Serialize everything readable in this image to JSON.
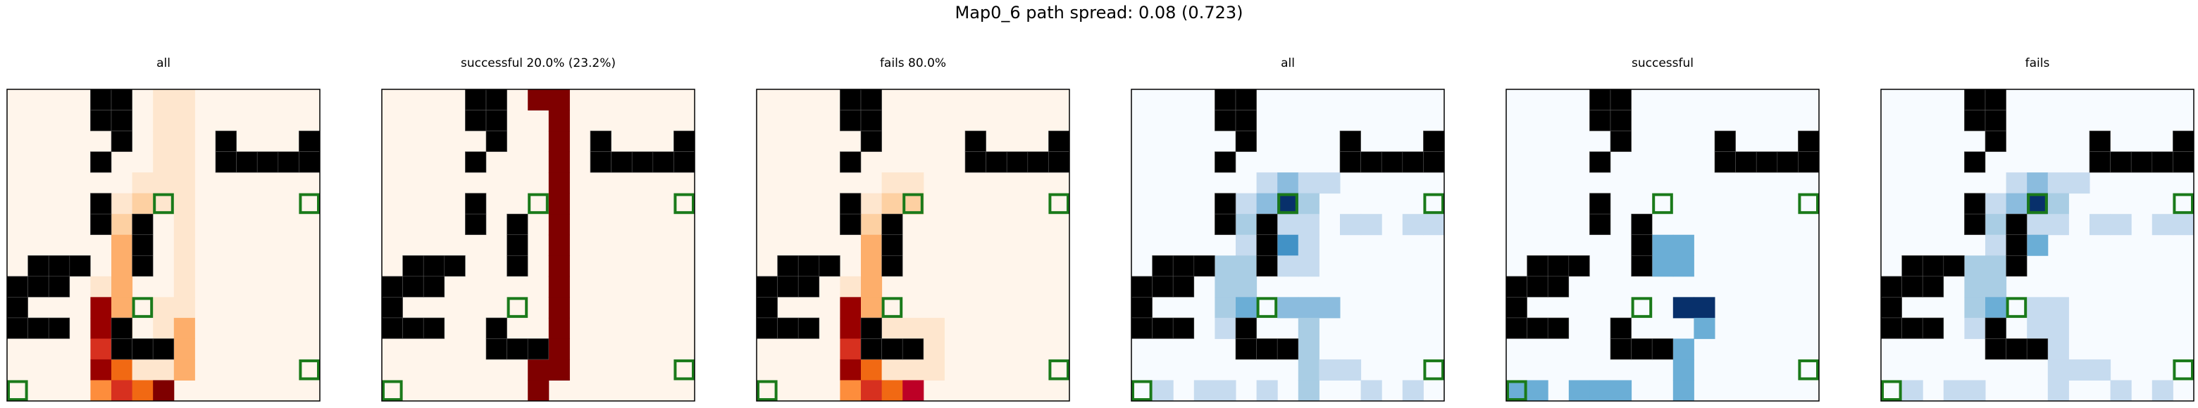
{
  "suptitle": "Map0_6 path spread: 0.08 (0.723)",
  "chart_data": {
    "type": "heatmap",
    "grid": {
      "rows": 15,
      "cols": 15
    },
    "wall_color": "#000000",
    "start_marker_color": "#1a7a1a",
    "walls": [
      [
        0,
        4
      ],
      [
        1,
        4
      ],
      [
        0,
        5
      ],
      [
        1,
        5
      ],
      [
        2,
        5
      ],
      [
        2,
        10
      ],
      [
        2,
        14
      ],
      [
        3,
        4
      ],
      [
        3,
        10
      ],
      [
        3,
        11
      ],
      [
        3,
        12
      ],
      [
        3,
        13
      ],
      [
        3,
        14
      ],
      [
        5,
        4
      ],
      [
        6,
        4
      ],
      [
        6,
        6
      ],
      [
        7,
        6
      ],
      [
        8,
        1
      ],
      [
        8,
        2
      ],
      [
        8,
        3
      ],
      [
        8,
        6
      ],
      [
        9,
        0
      ],
      [
        9,
        1
      ],
      [
        9,
        2
      ],
      [
        10,
        0
      ],
      [
        11,
        0
      ],
      [
        11,
        1
      ],
      [
        11,
        2
      ],
      [
        11,
        5
      ],
      [
        12,
        5
      ],
      [
        12,
        6
      ],
      [
        12,
        7
      ]
    ],
    "targets": [
      [
        5,
        7
      ],
      [
        5,
        14
      ],
      [
        10,
        6
      ],
      [
        13,
        14
      ],
      [
        14,
        0
      ]
    ],
    "panels": [
      {
        "title": "all",
        "colormap": "Reds",
        "cells": [
          [
            0,
            7,
            1
          ],
          [
            0,
            8,
            1
          ],
          [
            1,
            7,
            1
          ],
          [
            1,
            8,
            1
          ],
          [
            2,
            7,
            1
          ],
          [
            2,
            8,
            1
          ],
          [
            3,
            7,
            1
          ],
          [
            3,
            8,
            1
          ],
          [
            4,
            6,
            1
          ],
          [
            4,
            7,
            1
          ],
          [
            4,
            8,
            1
          ],
          [
            5,
            5,
            1
          ],
          [
            5,
            6,
            2
          ],
          [
            5,
            7,
            1
          ],
          [
            5,
            8,
            1
          ],
          [
            6,
            5,
            2
          ],
          [
            6,
            8,
            1
          ],
          [
            7,
            5,
            3
          ],
          [
            7,
            8,
            1
          ],
          [
            8,
            5,
            3
          ],
          [
            8,
            8,
            1
          ],
          [
            9,
            4,
            1
          ],
          [
            9,
            5,
            3
          ],
          [
            9,
            8,
            1
          ],
          [
            10,
            4,
            9
          ],
          [
            10,
            5,
            3
          ],
          [
            10,
            7,
            1
          ],
          [
            10,
            8,
            1
          ],
          [
            11,
            4,
            9
          ],
          [
            11,
            5,
            3
          ],
          [
            11,
            7,
            1
          ],
          [
            11,
            8,
            3
          ],
          [
            12,
            4,
            7
          ],
          [
            12,
            8,
            3
          ],
          [
            13,
            4,
            9
          ],
          [
            13,
            5,
            5
          ],
          [
            13,
            6,
            1
          ],
          [
            13,
            7,
            1
          ],
          [
            13,
            8,
            3
          ],
          [
            14,
            4,
            4
          ],
          [
            14,
            5,
            7
          ],
          [
            14,
            6,
            5
          ],
          [
            14,
            7,
            10
          ]
        ]
      },
      {
        "title": "successful 20.0% (23.2%)",
        "colormap": "Reds",
        "cells": [
          [
            0,
            7,
            10
          ],
          [
            0,
            8,
            10
          ],
          [
            1,
            8,
            10
          ],
          [
            2,
            8,
            10
          ],
          [
            3,
            8,
            10
          ],
          [
            4,
            8,
            10
          ],
          [
            5,
            8,
            10
          ],
          [
            6,
            8,
            10
          ],
          [
            7,
            8,
            10
          ],
          [
            8,
            8,
            10
          ],
          [
            9,
            8,
            10
          ],
          [
            10,
            8,
            10
          ],
          [
            11,
            8,
            10
          ],
          [
            12,
            8,
            10
          ],
          [
            13,
            7,
            10
          ],
          [
            13,
            8,
            10
          ],
          [
            14,
            7,
            10
          ]
        ]
      },
      {
        "title": "fails 80.0%",
        "colormap": "Reds",
        "cells": [
          [
            4,
            6,
            1
          ],
          [
            4,
            7,
            1
          ],
          [
            5,
            5,
            1
          ],
          [
            5,
            6,
            2
          ],
          [
            5,
            7,
            2
          ],
          [
            6,
            5,
            2
          ],
          [
            7,
            5,
            3
          ],
          [
            8,
            5,
            3
          ],
          [
            9,
            4,
            1
          ],
          [
            9,
            5,
            3
          ],
          [
            10,
            4,
            9
          ],
          [
            10,
            5,
            3
          ],
          [
            11,
            4,
            9
          ],
          [
            11,
            5,
            3
          ],
          [
            11,
            6,
            1
          ],
          [
            11,
            7,
            1
          ],
          [
            11,
            8,
            1
          ],
          [
            12,
            4,
            7
          ],
          [
            12,
            8,
            1
          ],
          [
            13,
            4,
            9
          ],
          [
            13,
            5,
            5
          ],
          [
            13,
            6,
            1
          ],
          [
            13,
            7,
            1
          ],
          [
            13,
            8,
            1
          ],
          [
            14,
            4,
            4
          ],
          [
            14,
            5,
            7
          ],
          [
            14,
            6,
            5
          ],
          [
            14,
            7,
            8
          ]
        ]
      },
      {
        "title": "all",
        "colormap": "Blues",
        "cells": [
          [
            4,
            6,
            2
          ],
          [
            4,
            7,
            4
          ],
          [
            4,
            8,
            2
          ],
          [
            4,
            9,
            2
          ],
          [
            5,
            5,
            2
          ],
          [
            5,
            6,
            4
          ],
          [
            5,
            7,
            10
          ],
          [
            5,
            8,
            3
          ],
          [
            6,
            5,
            3
          ],
          [
            6,
            7,
            2
          ],
          [
            6,
            8,
            2
          ],
          [
            6,
            10,
            2
          ],
          [
            6,
            11,
            2
          ],
          [
            6,
            13,
            2
          ],
          [
            6,
            14,
            2
          ],
          [
            7,
            5,
            2
          ],
          [
            7,
            7,
            6
          ],
          [
            7,
            8,
            2
          ],
          [
            8,
            4,
            3
          ],
          [
            8,
            5,
            3
          ],
          [
            8,
            7,
            2
          ],
          [
            8,
            8,
            2
          ],
          [
            9,
            4,
            3
          ],
          [
            9,
            5,
            3
          ],
          [
            10,
            4,
            3
          ],
          [
            10,
            5,
            5
          ],
          [
            10,
            7,
            4
          ],
          [
            10,
            8,
            4
          ],
          [
            10,
            9,
            4
          ],
          [
            11,
            4,
            2
          ],
          [
            11,
            5,
            3
          ],
          [
            11,
            8,
            3
          ],
          [
            12,
            8,
            3
          ],
          [
            13,
            8,
            3
          ],
          [
            13,
            9,
            2
          ],
          [
            13,
            10,
            2
          ],
          [
            14,
            1,
            2
          ],
          [
            14,
            3,
            2
          ],
          [
            14,
            4,
            2
          ],
          [
            14,
            6,
            2
          ],
          [
            14,
            8,
            3
          ],
          [
            14,
            11,
            2
          ],
          [
            14,
            13,
            2
          ]
        ]
      },
      {
        "title": "successful",
        "colormap": "Blues",
        "cells": [
          [
            7,
            7,
            5
          ],
          [
            7,
            8,
            5
          ],
          [
            8,
            7,
            5
          ],
          [
            8,
            8,
            5
          ],
          [
            10,
            8,
            10
          ],
          [
            10,
            9,
            10
          ],
          [
            11,
            9,
            5
          ],
          [
            12,
            8,
            5
          ],
          [
            13,
            8,
            5
          ],
          [
            14,
            0,
            5
          ],
          [
            14,
            1,
            5
          ],
          [
            14,
            3,
            5
          ],
          [
            14,
            4,
            5
          ],
          [
            14,
            5,
            5
          ],
          [
            14,
            8,
            5
          ]
        ]
      },
      {
        "title": "fails",
        "colormap": "Blues",
        "cells": [
          [
            4,
            6,
            2
          ],
          [
            4,
            7,
            4
          ],
          [
            4,
            8,
            2
          ],
          [
            4,
            9,
            2
          ],
          [
            5,
            5,
            2
          ],
          [
            5,
            6,
            4
          ],
          [
            5,
            7,
            10
          ],
          [
            5,
            8,
            3
          ],
          [
            6,
            5,
            3
          ],
          [
            6,
            7,
            2
          ],
          [
            6,
            8,
            2
          ],
          [
            6,
            10,
            2
          ],
          [
            6,
            11,
            2
          ],
          [
            6,
            13,
            2
          ],
          [
            6,
            14,
            2
          ],
          [
            7,
            5,
            2
          ],
          [
            7,
            7,
            5
          ],
          [
            8,
            4,
            3
          ],
          [
            8,
            5,
            3
          ],
          [
            9,
            4,
            3
          ],
          [
            9,
            5,
            3
          ],
          [
            10,
            4,
            3
          ],
          [
            10,
            5,
            5
          ],
          [
            10,
            7,
            2
          ],
          [
            10,
            8,
            2
          ],
          [
            11,
            4,
            2
          ],
          [
            11,
            5,
            3
          ],
          [
            11,
            7,
            2
          ],
          [
            11,
            8,
            2
          ],
          [
            12,
            8,
            2
          ],
          [
            13,
            8,
            2
          ],
          [
            13,
            9,
            2
          ],
          [
            13,
            10,
            2
          ],
          [
            14,
            1,
            2
          ],
          [
            14,
            3,
            2
          ],
          [
            14,
            4,
            2
          ],
          [
            14,
            8,
            2
          ],
          [
            14,
            11,
            2
          ],
          [
            14,
            13,
            2
          ]
        ]
      }
    ]
  }
}
